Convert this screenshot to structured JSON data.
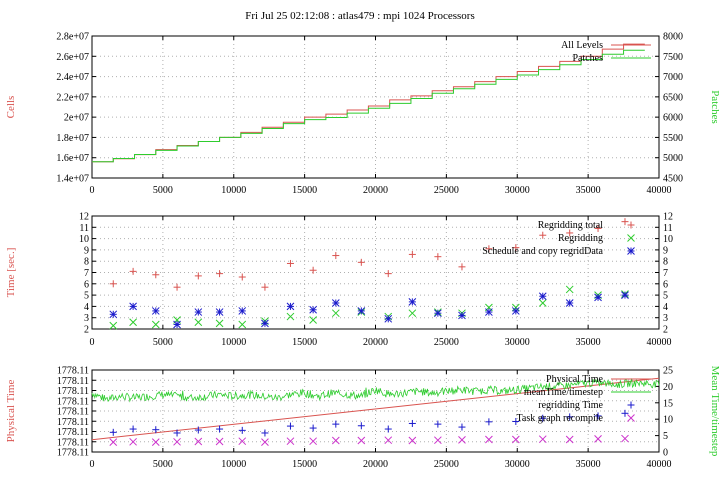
{
  "title": "Fri Jul 25 02:12:08 : atlas479 : mpi 1024 Processors",
  "colors": {
    "red": "#d9534f",
    "green": "#2ecc2e",
    "blue": "#1a1acc",
    "magenta": "#cc33cc",
    "grid": "#b0b0b0"
  },
  "chart_data": [
    {
      "type": "line",
      "xlim": [
        0,
        40000
      ],
      "xticks": [
        "0",
        "5000",
        "10000",
        "15000",
        "20000",
        "25000",
        "30000",
        "35000",
        "40000"
      ],
      "ylabel": "Cells",
      "ylim": [
        14000000,
        28000000
      ],
      "yticks": [
        "1.4e+07",
        "1.6e+07",
        "1.8e+07",
        "2e+07",
        "2.2e+07",
        "2.4e+07",
        "2.6e+07",
        "2.8e+07"
      ],
      "y2label": "Patches",
      "y2lim": [
        4500,
        8000
      ],
      "y2ticks": [
        "4500",
        "5000",
        "5500",
        "6000",
        "6500",
        "7000",
        "7500",
        "8000"
      ],
      "grid": true,
      "legend_position": "top-right",
      "series": [
        {
          "name": "All Levels",
          "axis": "left",
          "style": "steps",
          "color": "red",
          "x": [
            0,
            1500,
            3000,
            4500,
            6000,
            7500,
            9000,
            10500,
            12000,
            13500,
            15000,
            16500,
            18000,
            19500,
            21000,
            22500,
            24000,
            25500,
            27000,
            28500,
            30000,
            31500,
            33000,
            34500,
            36000,
            37500
          ],
          "y": [
            15600000,
            15900000,
            16300000,
            16800000,
            17200000,
            17600000,
            18000000,
            18500000,
            19000000,
            19500000,
            20000000,
            20300000,
            20700000,
            21100000,
            21700000,
            22100000,
            22600000,
            23000000,
            23500000,
            24000000,
            24500000,
            25000000,
            25500000,
            26000000,
            26700000,
            27200000
          ]
        },
        {
          "name": "Patches",
          "axis": "right",
          "style": "steps",
          "color": "green",
          "x": [
            0,
            1500,
            3000,
            4500,
            6000,
            7500,
            9000,
            10500,
            12000,
            13500,
            15000,
            16500,
            18000,
            19500,
            21000,
            22500,
            24000,
            25500,
            27000,
            28500,
            30000,
            31500,
            33000,
            34500,
            36000,
            37500
          ],
          "y": [
            4900,
            4980,
            5080,
            5180,
            5290,
            5400,
            5500,
            5600,
            5720,
            5840,
            5940,
            5990,
            6100,
            6220,
            6340,
            6460,
            6590,
            6700,
            6810,
            6930,
            7040,
            7170,
            7290,
            7420,
            7550,
            7650
          ]
        }
      ]
    },
    {
      "type": "scatter",
      "xlim": [
        0,
        40000
      ],
      "xticks": [
        "0",
        "5000",
        "10000",
        "15000",
        "20000",
        "25000",
        "30000",
        "35000",
        "40000"
      ],
      "ylabel": "Time [sec.]",
      "ylim": [
        2,
        12
      ],
      "yticks": [
        "2",
        "3",
        "4",
        "5",
        "6",
        "7",
        "8",
        "9",
        "10",
        "11",
        "12"
      ],
      "y2lim": [
        2,
        12
      ],
      "y2ticks": [
        "2",
        "3",
        "4",
        "5",
        "6",
        "7",
        "8",
        "9",
        "10",
        "11",
        "12"
      ],
      "grid": true,
      "legend_position": "top-right",
      "series": [
        {
          "name": "Regridding total",
          "marker": "plus",
          "color": "red",
          "x": [
            1500,
            2900,
            4500,
            6000,
            7500,
            9000,
            10600,
            12200,
            14000,
            15600,
            17200,
            19000,
            20900,
            22600,
            24400,
            26100,
            28000,
            29900,
            31800,
            33700,
            35700,
            37600
          ],
          "y": [
            6.0,
            7.1,
            6.8,
            5.7,
            6.7,
            6.9,
            6.6,
            5.7,
            7.8,
            7.2,
            8.5,
            7.9,
            6.9,
            8.6,
            8.4,
            7.5,
            9.1,
            9.2,
            10.3,
            10.5,
            10.9,
            11.5
          ]
        },
        {
          "name": "Regridding",
          "marker": "x",
          "color": "green",
          "x": [
            1500,
            2900,
            4500,
            6000,
            7500,
            9000,
            10600,
            12200,
            14000,
            15600,
            17200,
            19000,
            20900,
            22600,
            24400,
            26100,
            28000,
            29900,
            31800,
            33700,
            35700,
            37600
          ],
          "y": [
            2.3,
            2.6,
            2.4,
            2.8,
            2.6,
            2.5,
            2.4,
            2.7,
            3.1,
            2.8,
            3.4,
            3.5,
            3.1,
            3.4,
            3.5,
            3.4,
            3.9,
            3.9,
            4.3,
            5.5,
            5.0,
            5.1
          ]
        },
        {
          "name": "Schedule and copy regridData",
          "marker": "star",
          "color": "blue",
          "x": [
            1500,
            2900,
            4500,
            6000,
            7500,
            9000,
            10600,
            12200,
            14000,
            15600,
            17200,
            19000,
            20900,
            22600,
            24400,
            26100,
            28000,
            29900,
            31800,
            33700,
            35700,
            37600
          ],
          "y": [
            3.3,
            4.0,
            3.6,
            2.4,
            3.5,
            3.5,
            3.6,
            2.5,
            4.0,
            3.7,
            4.3,
            3.6,
            2.9,
            4.4,
            3.4,
            3.2,
            3.5,
            3.6,
            4.9,
            4.3,
            4.8,
            5.0
          ]
        }
      ]
    },
    {
      "type": "line",
      "xlim": [
        0,
        40000
      ],
      "xticks": [
        "0",
        "5000",
        "10000",
        "15000",
        "20000",
        "25000",
        "30000",
        "35000",
        "40000"
      ],
      "ylabel": "Physical Time",
      "ylim": [
        0,
        8
      ],
      "yticks": [
        "1778.11",
        "1778.11",
        "1778.11",
        "1778.11",
        "1778.11",
        "1778.11",
        "1778.11",
        "1778.11",
        "1778.11"
      ],
      "y2label": "Mean Time/timestep",
      "y2lim": [
        0,
        25
      ],
      "y2ticks": [
        "0",
        "5",
        "10",
        "15",
        "20",
        "25"
      ],
      "grid": true,
      "legend_position": "top-right",
      "series": [
        {
          "name": "Physical Time",
          "axis": "left",
          "style": "line",
          "color": "red",
          "x": [
            0,
            40000
          ],
          "y": [
            1.2,
            7.2
          ]
        },
        {
          "name": "meanTime/timestep",
          "axis": "right",
          "style": "noisy-line",
          "color": "green",
          "x": [
            0,
            1000,
            2000,
            3000,
            4000,
            5000,
            6000,
            7000,
            8000,
            9000,
            10000,
            11000,
            12000,
            13000,
            14000,
            15000,
            16000,
            17000,
            18000,
            19000,
            20000,
            21000,
            22000,
            23000,
            24000,
            25000,
            26000,
            27000,
            28000,
            29000,
            30000,
            31000,
            32000,
            33000,
            34000,
            35000,
            36000,
            37000,
            38000,
            39000,
            40000
          ],
          "y": [
            18,
            16,
            17,
            16.5,
            17,
            17.5,
            17,
            16.5,
            17,
            17.5,
            17,
            17.5,
            17,
            16.5,
            17.5,
            18,
            17,
            18,
            17.5,
            17,
            19,
            17.5,
            18,
            18.5,
            18,
            18.5,
            19,
            18.5,
            19,
            18.5,
            19,
            19.5,
            20,
            20,
            20.5,
            21,
            21,
            20.5,
            21,
            21,
            20.5
          ]
        },
        {
          "name": "regridding Time",
          "axis": "right",
          "marker": "plus",
          "color": "blue",
          "x": [
            1500,
            2900,
            4500,
            6000,
            7500,
            9000,
            10600,
            12200,
            14000,
            15600,
            17200,
            19000,
            20900,
            22600,
            24400,
            26100,
            28000,
            29900,
            31800,
            33700,
            35700,
            37600
          ],
          "y": [
            6.0,
            7.0,
            6.8,
            5.8,
            6.7,
            7.0,
            6.6,
            5.8,
            7.9,
            7.3,
            8.5,
            8.0,
            7.0,
            8.7,
            8.5,
            7.6,
            9.2,
            9.3,
            10.3,
            10.7,
            11.0,
            11.8
          ]
        },
        {
          "name": "Task graph recompile",
          "axis": "right",
          "marker": "x",
          "color": "magenta",
          "x": [
            1500,
            2900,
            4500,
            6000,
            7500,
            9000,
            10600,
            12200,
            14000,
            15600,
            17200,
            19000,
            20900,
            22600,
            24400,
            26100,
            28000,
            29900,
            31800,
            33700,
            35700,
            37600
          ],
          "y": [
            3.0,
            3.1,
            3.0,
            3.1,
            3.2,
            3.2,
            3.3,
            3.0,
            3.3,
            3.3,
            3.5,
            3.5,
            3.6,
            3.5,
            3.6,
            3.7,
            3.8,
            3.8,
            3.9,
            3.8,
            4.0,
            4.1
          ]
        }
      ]
    }
  ]
}
